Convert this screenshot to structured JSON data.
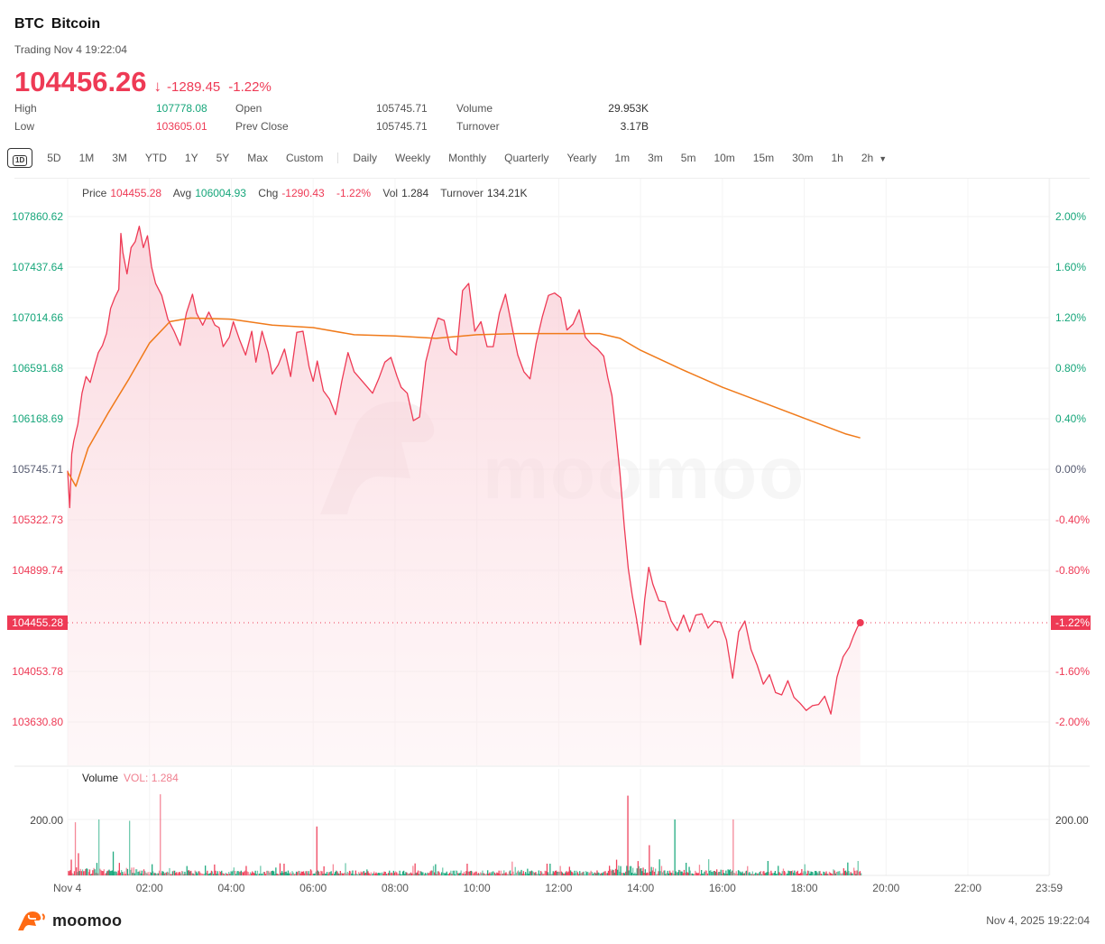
{
  "header": {
    "symbol": "BTC",
    "name": "Bitcoin",
    "status": "Trading Nov 4 19:22:04",
    "price": "104456.26",
    "arrow": "↓",
    "change": "-1289.45",
    "change_pct": "-1.22%"
  },
  "stats": {
    "high_label": "High",
    "high": "107778.08",
    "low_label": "Low",
    "low": "103605.01",
    "open_label": "Open",
    "open": "105745.71",
    "prev_close_label": "Prev Close",
    "prev_close": "105745.71",
    "volume_label": "Volume",
    "volume": "29.953K",
    "turnover_label": "Turnover",
    "turnover": "3.17B"
  },
  "toolbar": {
    "active": "1D",
    "ranges": [
      "5D",
      "1M",
      "3M",
      "YTD",
      "1Y",
      "5Y",
      "Max",
      "Custom"
    ],
    "periods": [
      "Daily",
      "Weekly",
      "Monthly",
      "Quarterly",
      "Yearly",
      "1m",
      "3m",
      "5m",
      "10m",
      "15m",
      "30m",
      "1h"
    ],
    "dropdown": "2h"
  },
  "legend": {
    "price_label": "Price",
    "price": "104455.28",
    "avg_label": "Avg",
    "avg": "106004.93",
    "chg_label": "Chg",
    "chg": "-1290.43",
    "chg_pct": "-1.22%",
    "vol_label": "Vol",
    "vol": "1.284",
    "turnover_label": "Turnover",
    "turnover": "134.21K"
  },
  "volume_panel": {
    "title": "Volume",
    "value": "VOL: 1.284",
    "axis_label": "200.00"
  },
  "colors": {
    "up": "#16a67a",
    "down": "#ee3a55",
    "avg_line": "#f07a1a",
    "area_fill": "#fbdde2",
    "brand": "#ff6a13"
  },
  "footer": {
    "brand": "moomoo",
    "timestamp": "Nov 4, 2025 19:22:04"
  },
  "chart_data": {
    "type": "line",
    "title": "BTC Bitcoin intraday (1D)",
    "xlabel": "",
    "ylabel": "Price",
    "x_ticks": [
      "Nov 4",
      "02:00",
      "04:00",
      "06:00",
      "08:00",
      "10:00",
      "12:00",
      "14:00",
      "16:00",
      "18:00",
      "20:00",
      "22:00",
      "23:59"
    ],
    "y_ticks_left": [
      "107860.62",
      "107437.64",
      "107014.66",
      "106591.68",
      "106168.69",
      "105745.71",
      "105322.73",
      "104899.74",
      "104455.28",
      "104053.78",
      "103630.80"
    ],
    "y_ticks_right": [
      "2.00%",
      "1.60%",
      "1.20%",
      "0.80%",
      "0.40%",
      "0.00%",
      "-0.40%",
      "-0.80%",
      "-1.22%",
      "-1.60%",
      "-2.00%"
    ],
    "ylim": [
      103630.8,
      107860.62
    ],
    "prev_close": 105745.71,
    "current_price": 104455.28,
    "current_pct": "-1.22%",
    "series": [
      {
        "name": "Price",
        "x_hours": [
          0,
          0.05,
          0.1,
          0.15,
          0.25,
          0.35,
          0.45,
          0.55,
          0.65,
          0.75,
          0.85,
          0.95,
          1.05,
          1.15,
          1.25,
          1.3,
          1.35,
          1.45,
          1.55,
          1.65,
          1.75,
          1.85,
          1.95,
          2.05,
          2.15,
          2.3,
          2.45,
          2.6,
          2.75,
          2.9,
          3.05,
          3.15,
          3.3,
          3.45,
          3.6,
          3.7,
          3.8,
          3.95,
          4.05,
          4.2,
          4.35,
          4.5,
          4.6,
          4.75,
          4.9,
          5.0,
          5.15,
          5.3,
          5.45,
          5.6,
          5.75,
          5.9,
          6.0,
          6.1,
          6.25,
          6.4,
          6.55,
          6.7,
          6.85,
          7.0,
          7.15,
          7.3,
          7.45,
          7.6,
          7.75,
          7.9,
          8.05,
          8.15,
          8.3,
          8.45,
          8.6,
          8.75,
          8.9,
          9.05,
          9.2,
          9.35,
          9.5,
          9.65,
          9.8,
          9.95,
          10.1,
          10.25,
          10.4,
          10.55,
          10.7,
          10.85,
          11.0,
          11.15,
          11.3,
          11.45,
          11.6,
          11.75,
          11.9,
          12.05,
          12.2,
          12.35,
          12.5,
          12.65,
          12.8,
          12.95,
          13.1,
          13.2,
          13.3,
          13.4,
          13.5,
          13.6,
          13.7,
          13.8,
          13.9,
          14.0,
          14.1,
          14.2,
          14.3,
          14.45,
          14.6,
          14.75,
          14.9,
          15.05,
          15.2,
          15.35,
          15.5,
          15.65,
          15.8,
          15.95,
          16.1,
          16.25,
          16.4,
          16.55,
          16.7,
          16.85,
          17.0,
          17.15,
          17.3,
          17.45,
          17.6,
          17.75,
          17.9,
          18.05,
          18.2,
          18.35,
          18.5,
          18.65,
          18.8,
          18.95,
          19.1,
          19.2,
          19.3,
          19.37
        ],
        "values": [
          105730,
          105420,
          105870,
          105980,
          106120,
          106380,
          106520,
          106470,
          106600,
          106720,
          106780,
          106880,
          107090,
          107180,
          107250,
          107720,
          107560,
          107380,
          107600,
          107650,
          107780,
          107600,
          107700,
          107440,
          107300,
          107200,
          107000,
          106900,
          106780,
          107050,
          107210,
          107050,
          106950,
          107060,
          106950,
          106930,
          106770,
          106850,
          106980,
          106830,
          106700,
          106900,
          106640,
          106900,
          106720,
          106540,
          106620,
          106750,
          106520,
          106890,
          106900,
          106600,
          106480,
          106650,
          106400,
          106330,
          106200,
          106480,
          106720,
          106560,
          106500,
          106440,
          106380,
          106500,
          106640,
          106680,
          106520,
          106430,
          106380,
          106150,
          106180,
          106640,
          106850,
          107010,
          106990,
          106750,
          106700,
          107240,
          107300,
          106900,
          106980,
          106770,
          106770,
          107050,
          107210,
          106950,
          106700,
          106560,
          106500,
          106800,
          107020,
          107200,
          107220,
          107180,
          106910,
          106960,
          107080,
          106850,
          106790,
          106750,
          106690,
          106510,
          106360,
          106040,
          105700,
          105270,
          104910,
          104680,
          104490,
          104270,
          104650,
          104920,
          104780,
          104640,
          104630,
          104470,
          104390,
          104520,
          104380,
          104520,
          104530,
          104410,
          104470,
          104460,
          104310,
          103990,
          104380,
          104470,
          104230,
          104100,
          103940,
          104020,
          103870,
          103850,
          103970,
          103830,
          103780,
          103720,
          103760,
          103770,
          103840,
          103690,
          104000,
          104170,
          104250,
          104340,
          104420,
          104455
        ]
      },
      {
        "name": "Avg",
        "x_hours": [
          0,
          0.2,
          0.5,
          1.0,
          1.5,
          2.0,
          2.5,
          3.0,
          4.0,
          5.0,
          6.0,
          7.0,
          8.0,
          9.0,
          10.0,
          11.0,
          12.0,
          13.0,
          13.5,
          14.0,
          15.0,
          16.0,
          17.0,
          18.0,
          19.0,
          19.37
        ],
        "values": [
          105720,
          105600,
          105920,
          106220,
          106500,
          106800,
          106980,
          107010,
          107000,
          106950,
          106930,
          106870,
          106860,
          106840,
          106870,
          106880,
          106880,
          106880,
          106840,
          106740,
          106580,
          106430,
          106300,
          106170,
          106040,
          106005
        ]
      }
    ],
    "volume": {
      "ylabel": "200.00",
      "current": 1.284,
      "notable_spikes": [
        {
          "time": "00:10",
          "value": 190,
          "dir": "down"
        },
        {
          "time": "00:45",
          "value": 200,
          "dir": "up"
        },
        {
          "time": "01:30",
          "value": 195,
          "dir": "up"
        },
        {
          "time": "02:15",
          "value": 290,
          "dir": "down"
        },
        {
          "time": "06:05",
          "value": 175,
          "dir": "down"
        },
        {
          "time": "13:40",
          "value": 285,
          "dir": "down"
        },
        {
          "time": "14:50",
          "value": 200,
          "dir": "up"
        },
        {
          "time": "16:15",
          "value": 200,
          "dir": "down"
        }
      ]
    }
  }
}
